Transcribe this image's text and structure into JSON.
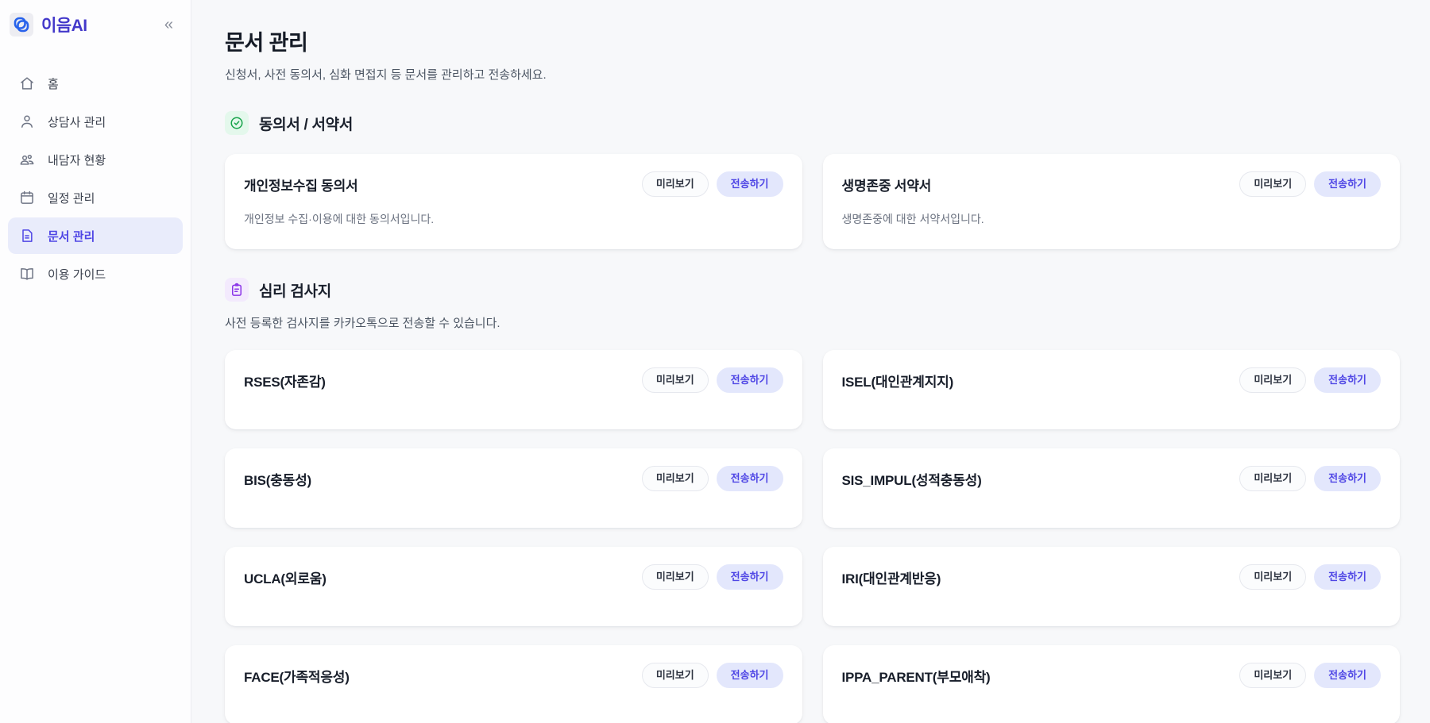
{
  "sidebar": {
    "logo_text": "이음AI",
    "collapse_label": "«",
    "items": [
      {
        "id": "home",
        "icon": "home-icon",
        "label": "홈",
        "active": false
      },
      {
        "id": "counselor",
        "icon": "user-icon",
        "label": "상담사 관리",
        "active": false
      },
      {
        "id": "client",
        "icon": "users-icon",
        "label": "내담자 현황",
        "active": false
      },
      {
        "id": "schedule",
        "icon": "calendar-icon",
        "label": "일정 관리",
        "active": false
      },
      {
        "id": "document",
        "icon": "document-icon",
        "label": "문서 관리",
        "active": true
      },
      {
        "id": "guide",
        "icon": "book-icon",
        "label": "이용 가이드",
        "active": false
      }
    ]
  },
  "header": {
    "title": "문서 관리",
    "subtitle": "신청서, 사전 동의서, 심화 면접지 등 문서를 관리하고 전송하세요."
  },
  "buttons": {
    "preview_label": "미리보기",
    "send_label": "전송하기"
  },
  "sections": [
    {
      "id": "consent",
      "icon": "check-circle-icon",
      "title": "동의서 / 서약서",
      "description": "",
      "cards": [
        {
          "title": "개인정보수집 동의서",
          "description": "개인정보 수집·이용에 대한 동의서입니다."
        },
        {
          "title": "생명존중 서약서",
          "description": "생명존중에 대한 서약서입니다."
        }
      ]
    },
    {
      "id": "psych-test",
      "icon": "clipboard-icon",
      "title": "심리 검사지",
      "description": "사전 등록한 검사지를 카카오톡으로 전송할 수 있습니다.",
      "cards": [
        {
          "title": "RSES(자존감)"
        },
        {
          "title": "ISEL(대인관계지지)"
        },
        {
          "title": "BIS(충동성)"
        },
        {
          "title": "SIS_IMPUL(성적충동성)"
        },
        {
          "title": "UCLA(외로움)"
        },
        {
          "title": "IRI(대인관계반응)"
        },
        {
          "title": "FACE(가족적응성)"
        },
        {
          "title": "IPPA_PARENT(부모애착)"
        }
      ]
    }
  ],
  "colors": {
    "accent": "#4f46e5",
    "accent_light": "#e3e7fc",
    "active_nav_bg": "#e9ecfb",
    "green": "#16a34a",
    "green_bg": "#e4f8ec",
    "purple": "#8b35e8",
    "purple_bg": "#f3eafd",
    "page_bg": "#f7f8fa"
  }
}
